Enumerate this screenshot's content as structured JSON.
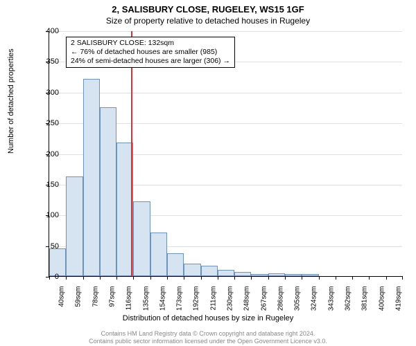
{
  "title_line1": "2, SALISBURY CLOSE, RUGELEY, WS15 1GF",
  "title_line2": "Size of property relative to detached houses in Rugeley",
  "chart": {
    "type": "histogram",
    "ylim": [
      0,
      400
    ],
    "ytick_step": 50,
    "yticks": [
      0,
      50,
      100,
      150,
      200,
      250,
      300,
      350,
      400
    ],
    "bars": [
      {
        "label": "40sqm",
        "value": 45
      },
      {
        "label": "59sqm",
        "value": 162
      },
      {
        "label": "78sqm",
        "value": 321
      },
      {
        "label": "97sqm",
        "value": 275
      },
      {
        "label": "116sqm",
        "value": 218
      },
      {
        "label": "135sqm",
        "value": 122
      },
      {
        "label": "154sqm",
        "value": 71
      },
      {
        "label": "173sqm",
        "value": 37
      },
      {
        "label": "192sqm",
        "value": 20
      },
      {
        "label": "211sqm",
        "value": 17
      },
      {
        "label": "230sqm",
        "value": 10
      },
      {
        "label": "248sqm",
        "value": 7
      },
      {
        "label": "267sqm",
        "value": 3
      },
      {
        "label": "286sqm",
        "value": 5
      },
      {
        "label": "305sqm",
        "value": 3
      },
      {
        "label": "324sqm",
        "value": 3
      },
      {
        "label": "343sqm",
        "value": 0
      },
      {
        "label": "362sqm",
        "value": 0
      },
      {
        "label": "381sqm",
        "value": 0
      },
      {
        "label": "400sqm",
        "value": 0
      },
      {
        "label": "419sqm",
        "value": 0
      }
    ],
    "bar_fill": "#d6e4f2",
    "bar_border": "#6a93c0",
    "grid_color": "#e0e0e0",
    "background_color": "#ffffff",
    "marker_line_x_index": 4.85,
    "marker_line_color": "#e03030",
    "annotation": {
      "line1": "2 SALISBURY CLOSE: 132sqm",
      "line2": "← 76% of detached houses are smaller (985)",
      "line3": "24% of semi-detached houses are larger (306) →"
    },
    "ylabel": "Number of detached properties",
    "xlabel": "Distribution of detached houses by size in Rugeley"
  },
  "footer_line1": "Contains HM Land Registry data © Crown copyright and database right 2024.",
  "footer_line2": "Contains public sector information licensed under the Open Government Licence v3.0."
}
